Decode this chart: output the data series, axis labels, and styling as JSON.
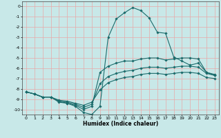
{
  "xlabel": "Humidex (Indice chaleur)",
  "bg_color": "#c8e8e8",
  "grid_color": "#e8a8a8",
  "line_color": "#1a6b6b",
  "xlim": [
    -0.5,
    23.5
  ],
  "ylim": [
    -10.5,
    0.5
  ],
  "xticks": [
    0,
    1,
    2,
    3,
    4,
    5,
    6,
    7,
    8,
    9,
    10,
    11,
    12,
    13,
    14,
    15,
    16,
    17,
    18,
    19,
    20,
    21,
    22,
    23
  ],
  "yticks": [
    0,
    -1,
    -2,
    -3,
    -4,
    -5,
    -6,
    -7,
    -8,
    -9,
    -10
  ],
  "series": [
    {
      "x": [
        0,
        1,
        2,
        3,
        4,
        5,
        6,
        7,
        8,
        9,
        10,
        11,
        12,
        13,
        14,
        15,
        16,
        17,
        18,
        19,
        20,
        21,
        22,
        23
      ],
      "y": [
        -8.3,
        -8.5,
        -8.8,
        -8.8,
        -9.3,
        -9.4,
        -9.7,
        -10.3,
        -10.5,
        -9.7,
        -3.0,
        -1.2,
        -0.6,
        -0.1,
        -0.4,
        -1.1,
        -2.5,
        -2.6,
        -4.9,
        -5.3,
        -5.7,
        -5.5,
        -6.4,
        -6.6
      ]
    },
    {
      "x": [
        0,
        1,
        2,
        3,
        4,
        5,
        6,
        7,
        8,
        9,
        10,
        11,
        12,
        13,
        14,
        15,
        16,
        17,
        18,
        19,
        20,
        21,
        22,
        23
      ],
      "y": [
        -8.3,
        -8.5,
        -8.8,
        -8.8,
        -9.2,
        -9.4,
        -9.6,
        -10.0,
        -9.7,
        -6.4,
        -5.8,
        -5.5,
        -5.3,
        -5.3,
        -5.1,
        -5.0,
        -5.0,
        -5.2,
        -5.1,
        -5.0,
        -5.0,
        -5.1,
        -6.4,
        -6.7
      ]
    },
    {
      "x": [
        0,
        1,
        2,
        3,
        4,
        5,
        6,
        7,
        8,
        9,
        10,
        11,
        12,
        13,
        14,
        15,
        16,
        17,
        18,
        19,
        20,
        21,
        22,
        23
      ],
      "y": [
        -8.3,
        -8.5,
        -8.8,
        -8.8,
        -9.2,
        -9.3,
        -9.5,
        -9.8,
        -9.5,
        -7.5,
        -6.8,
        -6.5,
        -6.3,
        -6.2,
        -6.0,
        -5.9,
        -5.9,
        -6.0,
        -5.9,
        -5.8,
        -5.8,
        -5.9,
        -6.5,
        -6.7
      ]
    },
    {
      "x": [
        0,
        1,
        2,
        3,
        4,
        5,
        6,
        7,
        8,
        9,
        10,
        11,
        12,
        13,
        14,
        15,
        16,
        17,
        18,
        19,
        20,
        21,
        22,
        23
      ],
      "y": [
        -8.3,
        -8.5,
        -8.8,
        -8.8,
        -9.1,
        -9.2,
        -9.4,
        -9.6,
        -9.3,
        -8.1,
        -7.4,
        -7.1,
        -6.9,
        -6.8,
        -6.6,
        -6.5,
        -6.5,
        -6.6,
        -6.5,
        -6.4,
        -6.4,
        -6.5,
        -6.9,
        -7.0
      ]
    }
  ]
}
